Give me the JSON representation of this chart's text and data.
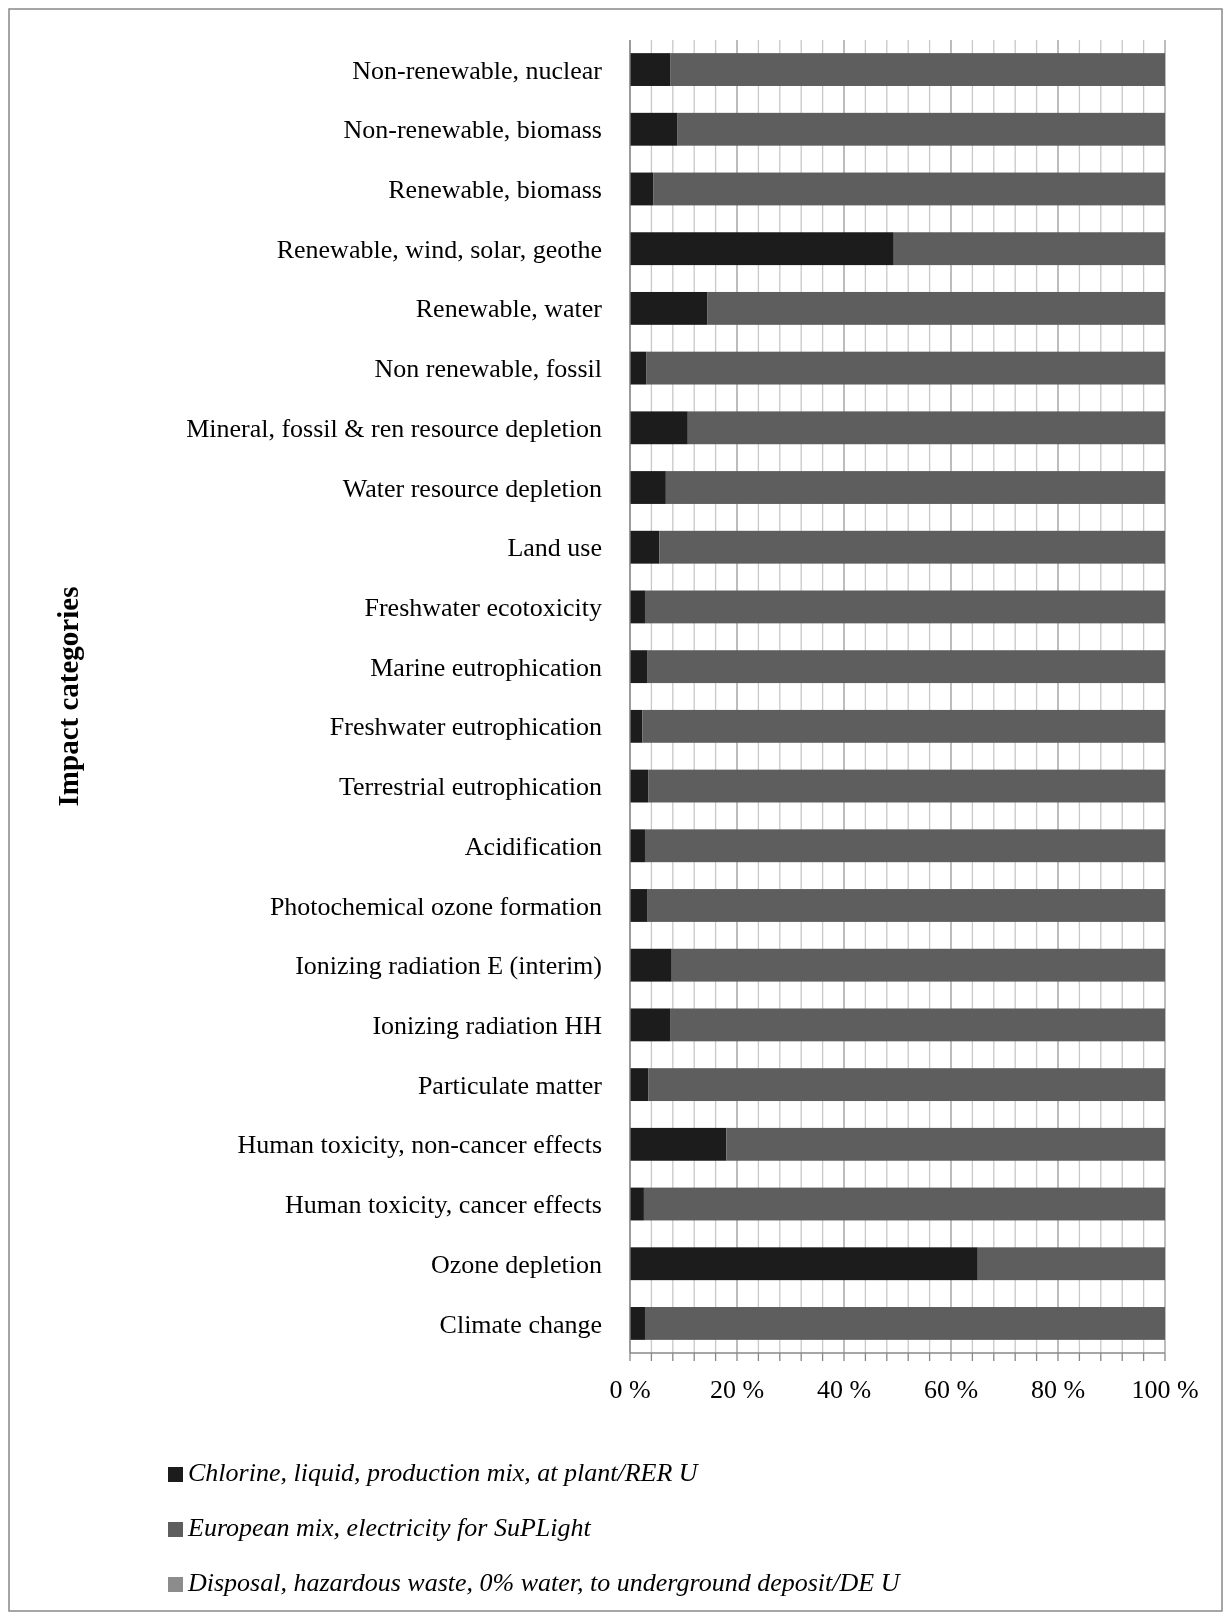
{
  "chart_data": {
    "type": "bar",
    "orientation": "horizontal",
    "stacked": true,
    "ylabel": "Impact categories",
    "categories": [
      "Non-renewable, nuclear",
      "Non-renewable, biomass",
      "Renewable, biomass",
      "Renewable, wind, solar, geothe",
      "Renewable, water",
      "Non renewable, fossil",
      "Mineral, fossil & ren resource depletion",
      "Water resource depletion",
      "Land use",
      "Freshwater ecotoxicity",
      "Marine eutrophication",
      "Freshwater eutrophication",
      "Terrestrial eutrophication",
      "Acidification",
      "Photochemical ozone formation",
      "Ionizing radiation E (interim)",
      "Ionizing radiation HH",
      "Particulate matter",
      "Human toxicity, non-cancer effects",
      "Human toxicity, cancer effects",
      "Ozone depletion",
      "Climate change"
    ],
    "series": [
      {
        "name": "Chlorine, liquid, production mix, at plant/RER U",
        "color": "#1c1c1c",
        "values": [
          7.5,
          8.9,
          4.4,
          49.3,
          14.5,
          3.1,
          10.8,
          6.7,
          5.5,
          2.8,
          3.3,
          2.3,
          3.4,
          2.8,
          3.3,
          7.8,
          7.6,
          3.4,
          18,
          2.6,
          65,
          2.8
        ]
      },
      {
        "name": "European mix, electricity for SuPLight",
        "color": "#5e5e5e",
        "values": [
          92.5,
          91.1,
          95.6,
          50.7,
          85.5,
          96.9,
          89.2,
          93.3,
          94.5,
          97.2,
          96.7,
          97.7,
          96.6,
          97.2,
          96.7,
          92.2,
          92.4,
          96.6,
          82,
          97.4,
          35,
          97.2
        ]
      },
      {
        "name": "Disposal, hazardous waste, 0% water, to underground deposit/DE U",
        "color": "#8c8c8c",
        "values": [
          0,
          0,
          0,
          0,
          0,
          0,
          0,
          0,
          0,
          0,
          0,
          0,
          0,
          0,
          0,
          0,
          0,
          0,
          0,
          0,
          0,
          0
        ]
      }
    ],
    "xlim": [
      0,
      100
    ],
    "xticks": [
      {
        "value": 0,
        "label": "0 %"
      },
      {
        "value": 4,
        "label": null
      },
      {
        "value": 8,
        "label": null
      },
      {
        "value": 12,
        "label": null
      },
      {
        "value": 16,
        "label": null
      },
      {
        "value": 20,
        "label": "20 %"
      },
      {
        "value": 24,
        "label": null
      },
      {
        "value": 28,
        "label": null
      },
      {
        "value": 32,
        "label": null
      },
      {
        "value": 36,
        "label": null
      },
      {
        "value": 40,
        "label": "40 %"
      },
      {
        "value": 44,
        "label": null
      },
      {
        "value": 48,
        "label": null
      },
      {
        "value": 52,
        "label": null
      },
      {
        "value": 56,
        "label": null
      },
      {
        "value": 60,
        "label": "60 %"
      },
      {
        "value": 64,
        "label": null
      },
      {
        "value": 68,
        "label": null
      },
      {
        "value": 72,
        "label": null
      },
      {
        "value": 76,
        "label": null
      },
      {
        "value": 80,
        "label": "80 %"
      },
      {
        "value": 84,
        "label": null
      },
      {
        "value": 88,
        "label": null
      },
      {
        "value": 92,
        "label": null
      },
      {
        "value": 96,
        "label": null
      },
      {
        "value": 100,
        "label": "100 %"
      }
    ],
    "grid": "x",
    "legend": "bottom"
  }
}
